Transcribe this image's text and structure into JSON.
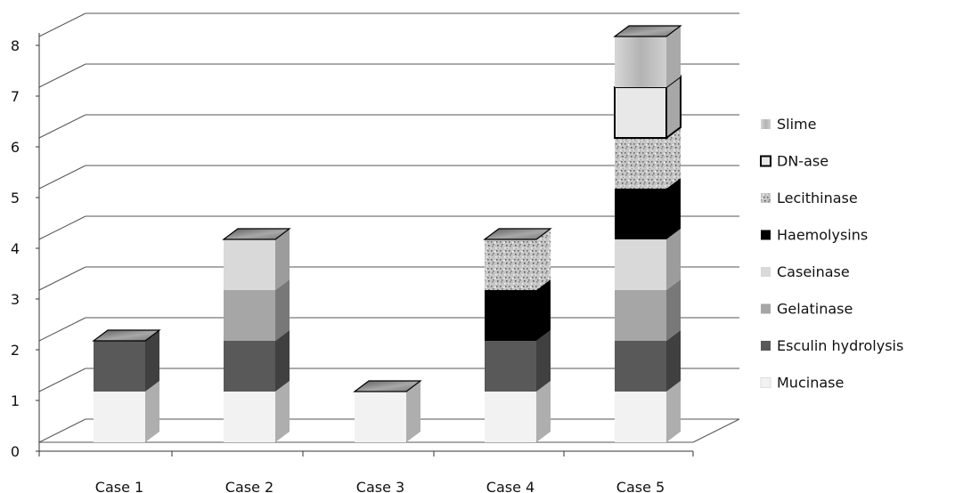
{
  "chart_data": {
    "type": "bar",
    "stacked": true,
    "three_d": true,
    "categories": [
      "Case 1",
      "Case 2",
      "Case 3",
      "Case 4",
      "Case 5"
    ],
    "series": [
      {
        "name": "Mucinase",
        "values": [
          1,
          1,
          1,
          1,
          1
        ],
        "color": "#f2f2f2",
        "pattern": "solid"
      },
      {
        "name": "Esculin hydrolysis",
        "values": [
          1,
          1,
          0,
          1,
          1
        ],
        "color": "#595959",
        "pattern": "solid"
      },
      {
        "name": "Gelatinase",
        "values": [
          0,
          1,
          0,
          0,
          1
        ],
        "color": "#a6a6a6",
        "pattern": "solid"
      },
      {
        "name": "Caseinase",
        "values": [
          0,
          1,
          0,
          0,
          1
        ],
        "color": "#d9d9d9",
        "pattern": "solid"
      },
      {
        "name": "Haemolysins",
        "values": [
          0,
          0,
          0,
          1,
          1
        ],
        "color": "#000000",
        "pattern": "solid"
      },
      {
        "name": "Lecithinase",
        "values": [
          0,
          0,
          0,
          1,
          1
        ],
        "color": "#b0b0b0",
        "pattern": "speckle"
      },
      {
        "name": "DN-ase",
        "values": [
          0,
          0,
          0,
          0,
          1
        ],
        "color": "#e8e8e8",
        "pattern": "outlined"
      },
      {
        "name": "Slime",
        "values": [
          0,
          0,
          0,
          0,
          1
        ],
        "color": "#c4c4c4",
        "pattern": "gradient"
      }
    ],
    "yticks": [
      0,
      1,
      2,
      3,
      4,
      5,
      6,
      7,
      8
    ],
    "ylim": [
      0,
      8
    ],
    "grid": true,
    "legend_position": "right",
    "legend_order": "reverse"
  }
}
